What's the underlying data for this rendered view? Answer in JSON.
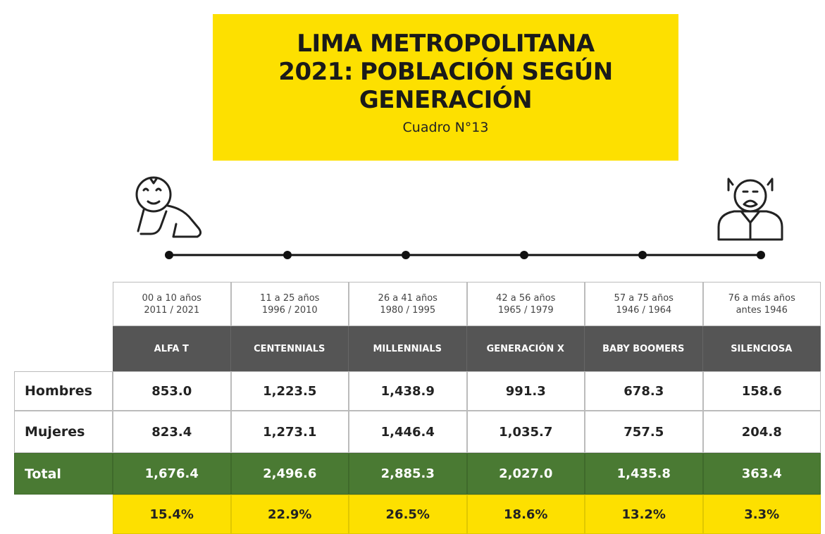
{
  "header": {
    "title_line1": "LIMA METROPOLITANA",
    "title_line2_year": "2021:",
    "title_line2_rest": "POBLACIÓN SEGÚN",
    "title_line3": "GENERACIÓN",
    "subtitle": "Cuadro N°13"
  },
  "table": {
    "columns": [
      {
        "ages": "00 a 10 años",
        "years": "2011 / 2021",
        "generation": "ALFA T"
      },
      {
        "ages": "11 a 25 años",
        "years": "1996 / 2010",
        "generation": "CENTENNIALS"
      },
      {
        "ages": "26 a 41 años",
        "years": "1980 / 1995",
        "generation": "MILLENNIALS"
      },
      {
        "ages": "42 a 56 años",
        "years": "1965 / 1979",
        "generation": "GENERACIÓN X"
      },
      {
        "ages": "57 a 75 años",
        "years": "1946 / 1964",
        "generation": "BABY BOOMERS"
      },
      {
        "ages": "76 a más años",
        "years": "antes 1946",
        "generation": "SILENCIOSA"
      }
    ],
    "rows": [
      {
        "label": "Hombres",
        "values": [
          "853.0",
          "1,223.5",
          "1,438.9",
          "991.3",
          "678.3",
          "158.6"
        ]
      },
      {
        "label": "Mujeres",
        "values": [
          "823.4",
          "1,273.1",
          "1,446.4",
          "1,035.7",
          "757.5",
          "204.8"
        ]
      },
      {
        "label": "Total",
        "values": [
          "1,676.4",
          "2,496.6",
          "2,885.3",
          "2,027.0",
          "1,435.8",
          "363.4"
        ]
      }
    ],
    "percentages": [
      "15.4%",
      "22.9%",
      "26.5%",
      "18.6%",
      "13.2%",
      "3.3%"
    ]
  }
}
